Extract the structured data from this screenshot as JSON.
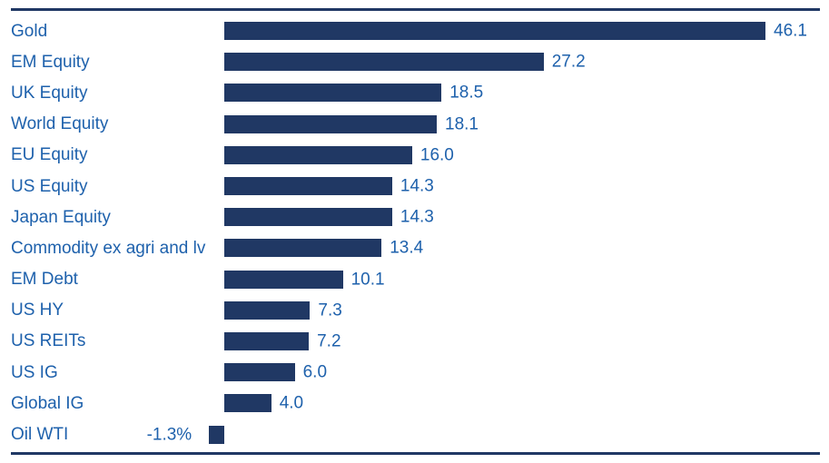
{
  "chart_data": {
    "type": "bar",
    "orientation": "horizontal",
    "title": "",
    "xlabel": "",
    "ylabel": "",
    "categories": [
      "Gold",
      "EM Equity",
      "UK Equity",
      "World Equity",
      "EU Equity",
      "US Equity",
      "Japan Equity",
      "Commodity ex agri and lv",
      "EM Debt",
      "US HY",
      "US REITs",
      "US IG",
      "Global IG",
      "Oil WTI"
    ],
    "values": [
      46.1,
      27.2,
      18.5,
      18.1,
      16.0,
      14.3,
      14.3,
      13.4,
      10.1,
      7.3,
      7.2,
      6.0,
      4.0,
      -1.3
    ],
    "value_labels": [
      "46.1",
      "27.2",
      "18.5",
      "18.1",
      "16.0",
      "14.3",
      "14.3",
      "13.4",
      "10.1",
      "7.3",
      "7.2",
      "6.0",
      "4.0",
      "-1.3%"
    ],
    "xlim": [
      -1.3,
      46.1
    ],
    "grid": "off",
    "axis": "hidden",
    "legend": "none",
    "data_labels_position": "outside-end",
    "colors": {
      "bar": "#203864",
      "label_text": "#1e61ac",
      "rule": "#203864",
      "background": "#ffffff"
    }
  }
}
